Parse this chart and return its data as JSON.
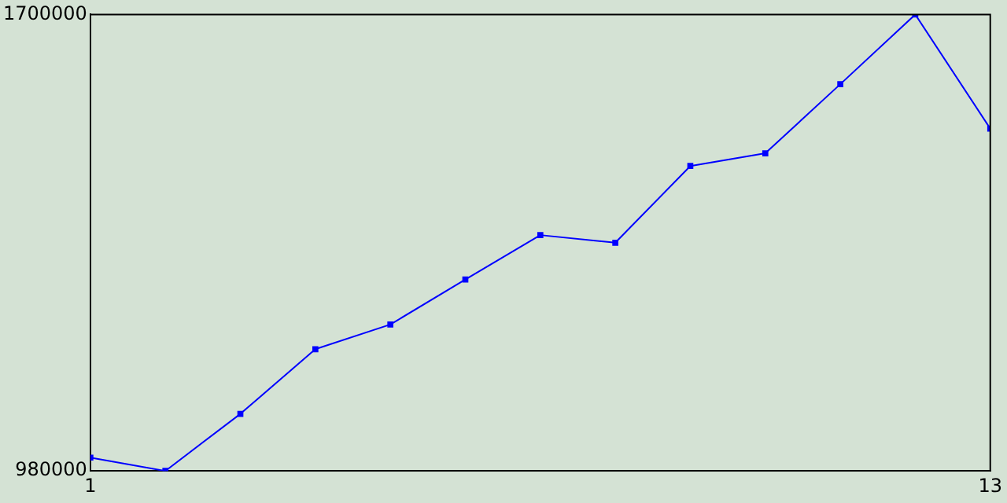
{
  "chart_data": {
    "type": "line",
    "x": [
      1,
      2,
      3,
      4,
      5,
      6,
      7,
      8,
      9,
      10,
      11,
      12,
      13
    ],
    "series": [
      {
        "color": "#0000ff",
        "values": [
          1001000,
          980000,
          1070000,
          1172000,
          1211000,
          1282000,
          1352000,
          1340000,
          1461000,
          1481000,
          1590000,
          1700000,
          1520000
        ]
      }
    ],
    "xlim": [
      1,
      13
    ],
    "xticks": [
      1,
      13
    ],
    "ylim": [
      980000,
      1700000
    ],
    "yticks": [
      980000,
      1700000
    ],
    "grid": false,
    "legend": false,
    "marker": "square",
    "line_style": "solid"
  }
}
